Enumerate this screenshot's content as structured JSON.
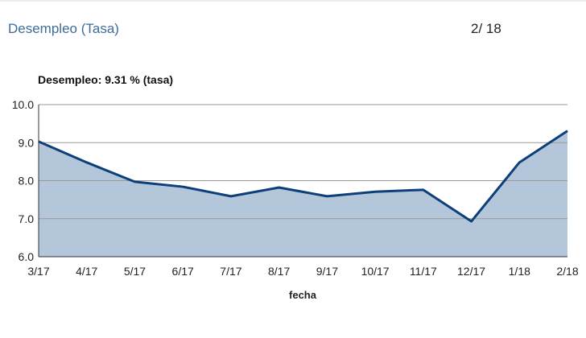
{
  "header": {
    "title": "Desempleo (Tasa)",
    "date": "2/ 18"
  },
  "chart_data": {
    "type": "area",
    "subtitle": "Desempleo: 9.31 % (tasa)",
    "x_label": "fecha",
    "categories": [
      "3/17",
      "4/17",
      "5/17",
      "6/17",
      "7/17",
      "8/17",
      "9/17",
      "10/17",
      "11/17",
      "12/17",
      "1/18",
      "2/18"
    ],
    "series": [
      {
        "name": "Desempleo",
        "color": "#0d3f7a",
        "fill": "#b4c7da",
        "values": [
          9.03,
          8.48,
          7.97,
          7.84,
          7.59,
          7.82,
          7.59,
          7.71,
          7.76,
          6.93,
          8.48,
          9.31
        ]
      }
    ],
    "ylim": [
      6,
      10
    ],
    "yticks": [
      {
        "value": 6,
        "label": "6.0"
      },
      {
        "value": 7,
        "label": "7.0"
      },
      {
        "value": 8,
        "label": "8.0"
      },
      {
        "value": 9,
        "label": "9.0"
      },
      {
        "value": 10,
        "label": "10.0"
      }
    ],
    "grid": true
  }
}
